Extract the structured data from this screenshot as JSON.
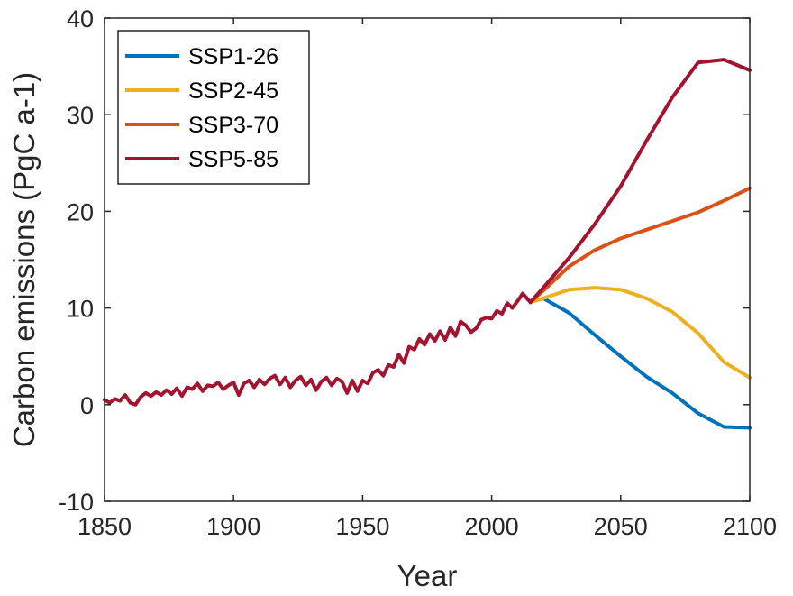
{
  "chart_data": {
    "type": "line",
    "title": "",
    "xlabel": "Year",
    "ylabel": "Carbon emissions (PgC a-1)",
    "xlim": [
      1850,
      2100
    ],
    "ylim": [
      -10,
      40
    ],
    "xticks": [
      1850,
      1900,
      1950,
      2000,
      2050,
      2100
    ],
    "yticks": [
      -10,
      0,
      10,
      20,
      30,
      40
    ],
    "grid": false,
    "legend_position": "top-left",
    "historical": {
      "color": "#A2142F",
      "x": [
        1850,
        1852,
        1854,
        1856,
        1858,
        1860,
        1862,
        1864,
        1866,
        1868,
        1870,
        1872,
        1874,
        1876,
        1878,
        1880,
        1882,
        1884,
        1886,
        1888,
        1890,
        1892,
        1894,
        1896,
        1898,
        1900,
        1902,
        1904,
        1906,
        1908,
        1910,
        1912,
        1914,
        1916,
        1918,
        1920,
        1922,
        1924,
        1926,
        1928,
        1930,
        1932,
        1934,
        1936,
        1938,
        1940,
        1942,
        1944,
        1946,
        1948,
        1950,
        1952,
        1954,
        1956,
        1958,
        1960,
        1962,
        1964,
        1966,
        1968,
        1970,
        1972,
        1974,
        1976,
        1978,
        1980,
        1982,
        1984,
        1986,
        1988,
        1990,
        1992,
        1994,
        1996,
        1998,
        2000,
        2002,
        2004,
        2006,
        2008,
        2010,
        2012,
        2014,
        2015
      ],
      "y": [
        0.5,
        0.2,
        0.6,
        0.4,
        1.0,
        0.2,
        0.0,
        0.8,
        1.2,
        0.9,
        1.3,
        1.0,
        1.5,
        1.1,
        1.7,
        0.9,
        1.8,
        1.6,
        2.2,
        1.4,
        2.0,
        1.9,
        2.3,
        1.6,
        2.0,
        2.3,
        1.0,
        2.2,
        2.5,
        1.8,
        2.6,
        2.1,
        2.7,
        3.0,
        2.1,
        2.8,
        1.8,
        2.5,
        2.9,
        2.0,
        2.6,
        1.5,
        2.4,
        2.8,
        2.0,
        2.7,
        2.4,
        1.2,
        2.5,
        1.4,
        2.5,
        2.2,
        3.3,
        3.6,
        3.0,
        4.1,
        3.9,
        5.2,
        4.3,
        6.0,
        5.7,
        6.8,
        6.2,
        7.3,
        6.6,
        7.6,
        6.7,
        8.0,
        7.1,
        8.6,
        8.2,
        7.5,
        7.9,
        8.8,
        9.0,
        8.9,
        9.7,
        9.4,
        10.5,
        10.0,
        10.7,
        11.5,
        10.9,
        10.6
      ]
    },
    "series": [
      {
        "name": "SSP1-26",
        "color": "#0072BD",
        "x": [
          2015,
          2020,
          2030,
          2040,
          2050,
          2060,
          2070,
          2080,
          2090,
          2100
        ],
        "y": [
          10.6,
          11.0,
          9.5,
          7.2,
          5.0,
          2.9,
          1.2,
          -0.9,
          -2.3,
          -2.4
        ]
      },
      {
        "name": "SSP2-45",
        "color": "#EDB120",
        "x": [
          2015,
          2020,
          2030,
          2040,
          2050,
          2060,
          2070,
          2080,
          2090,
          2100
        ],
        "y": [
          10.6,
          11.0,
          11.9,
          12.1,
          11.9,
          11.0,
          9.6,
          7.4,
          4.4,
          2.8
        ]
      },
      {
        "name": "SSP3-70",
        "color": "#D95319",
        "x": [
          2015,
          2020,
          2030,
          2040,
          2050,
          2060,
          2070,
          2080,
          2090,
          2100
        ],
        "y": [
          10.6,
          11.8,
          14.3,
          16.0,
          17.2,
          18.1,
          19.0,
          19.9,
          21.1,
          22.4
        ]
      },
      {
        "name": "SSP5-85",
        "color": "#A2142F",
        "x": [
          2015,
          2020,
          2030,
          2040,
          2050,
          2060,
          2070,
          2080,
          2090,
          2100
        ],
        "y": [
          10.6,
          12.1,
          15.2,
          18.7,
          22.6,
          27.3,
          31.8,
          35.4,
          35.7,
          34.6
        ]
      }
    ]
  }
}
